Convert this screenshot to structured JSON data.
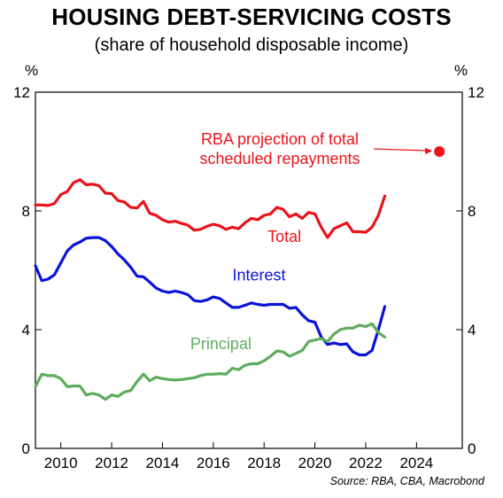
{
  "title": "HOUSING DEBT-SERVICING COSTS",
  "subtitle": "(share of household disposable income)",
  "source": "Source: RBA, CBA, Macrobond",
  "chart_data": {
    "type": "line",
    "title": "HOUSING DEBT-SERVICING COSTS",
    "subtitle": "(share of household disposable income)",
    "y_unit_left": "%",
    "y_unit_right": "%",
    "xlim": [
      2009.0,
      2025.8
    ],
    "ylim": [
      0,
      12
    ],
    "x_ticks": [
      2010,
      2012,
      2014,
      2016,
      2018,
      2020,
      2022,
      2024
    ],
    "y_ticks": [
      0,
      4,
      8,
      12
    ],
    "grid": false,
    "legend": "inline labels",
    "series": [
      {
        "name": "Total",
        "color": "#e8141b",
        "x": [
          2009.0,
          2009.25,
          2009.5,
          2009.75,
          2010.0,
          2010.25,
          2010.5,
          2010.75,
          2011.0,
          2011.25,
          2011.5,
          2011.75,
          2012.0,
          2012.25,
          2012.5,
          2012.75,
          2013.0,
          2013.25,
          2013.5,
          2013.75,
          2014.0,
          2014.25,
          2014.5,
          2014.75,
          2015.0,
          2015.25,
          2015.5,
          2015.75,
          2016.0,
          2016.25,
          2016.5,
          2016.75,
          2017.0,
          2017.25,
          2017.5,
          2017.75,
          2018.0,
          2018.25,
          2018.5,
          2018.75,
          2019.0,
          2019.25,
          2019.5,
          2019.75,
          2020.0,
          2020.25,
          2020.5,
          2020.75,
          2021.0,
          2021.25,
          2021.5,
          2021.75,
          2022.0,
          2022.25,
          2022.5,
          2022.75
        ],
        "values": [
          8.2,
          8.2,
          8.18,
          8.25,
          8.55,
          8.65,
          8.95,
          9.05,
          8.88,
          8.9,
          8.85,
          8.6,
          8.58,
          8.35,
          8.3,
          8.12,
          8.1,
          8.32,
          7.92,
          7.85,
          7.7,
          7.62,
          7.65,
          7.58,
          7.52,
          7.35,
          7.38,
          7.48,
          7.55,
          7.5,
          7.38,
          7.45,
          7.4,
          7.6,
          7.75,
          7.7,
          7.85,
          7.9,
          8.12,
          8.05,
          7.8,
          7.9,
          7.75,
          7.95,
          7.9,
          7.45,
          7.1,
          7.4,
          7.5,
          7.6,
          7.3,
          7.3,
          7.28,
          7.45,
          7.85,
          8.5
        ]
      },
      {
        "name": "Interest",
        "color": "#0a14d8",
        "x": [
          2009.0,
          2009.25,
          2009.5,
          2009.75,
          2010.0,
          2010.25,
          2010.5,
          2010.75,
          2011.0,
          2011.25,
          2011.5,
          2011.75,
          2012.0,
          2012.25,
          2012.5,
          2012.75,
          2013.0,
          2013.25,
          2013.5,
          2013.75,
          2014.0,
          2014.25,
          2014.5,
          2014.75,
          2015.0,
          2015.25,
          2015.5,
          2015.75,
          2016.0,
          2016.25,
          2016.5,
          2016.75,
          2017.0,
          2017.25,
          2017.5,
          2017.75,
          2018.0,
          2018.25,
          2018.5,
          2018.75,
          2019.0,
          2019.25,
          2019.5,
          2019.75,
          2020.0,
          2020.25,
          2020.5,
          2020.75,
          2021.0,
          2021.25,
          2021.5,
          2021.75,
          2022.0,
          2022.25,
          2022.5,
          2022.75
        ],
        "values": [
          6.15,
          5.65,
          5.7,
          5.85,
          6.25,
          6.65,
          6.85,
          6.95,
          7.08,
          7.1,
          7.1,
          7.0,
          6.8,
          6.55,
          6.35,
          6.1,
          5.8,
          5.78,
          5.6,
          5.4,
          5.3,
          5.25,
          5.3,
          5.25,
          5.18,
          4.98,
          4.95,
          5.0,
          5.1,
          5.05,
          4.9,
          4.75,
          4.75,
          4.82,
          4.9,
          4.85,
          4.82,
          4.85,
          4.85,
          4.85,
          4.72,
          4.75,
          4.5,
          4.3,
          4.25,
          3.75,
          3.5,
          3.55,
          3.5,
          3.52,
          3.25,
          3.15,
          3.15,
          3.3,
          4.0,
          4.78
        ]
      },
      {
        "name": "Principal",
        "color": "#5fac5f",
        "x": [
          2009.0,
          2009.25,
          2009.5,
          2009.75,
          2010.0,
          2010.25,
          2010.5,
          2010.75,
          2011.0,
          2011.25,
          2011.5,
          2011.75,
          2012.0,
          2012.25,
          2012.5,
          2012.75,
          2013.0,
          2013.25,
          2013.5,
          2013.75,
          2014.0,
          2014.25,
          2014.5,
          2014.75,
          2015.0,
          2015.25,
          2015.5,
          2015.75,
          2016.0,
          2016.25,
          2016.5,
          2016.75,
          2017.0,
          2017.25,
          2017.5,
          2017.75,
          2018.0,
          2018.25,
          2018.5,
          2018.75,
          2019.0,
          2019.25,
          2019.5,
          2019.75,
          2020.0,
          2020.25,
          2020.5,
          2020.75,
          2021.0,
          2021.25,
          2021.5,
          2021.75,
          2022.0,
          2022.25,
          2022.5,
          2022.75
        ],
        "values": [
          2.08,
          2.5,
          2.45,
          2.45,
          2.35,
          2.08,
          2.1,
          2.1,
          1.8,
          1.85,
          1.8,
          1.65,
          1.8,
          1.75,
          1.9,
          1.95,
          2.25,
          2.5,
          2.28,
          2.4,
          2.35,
          2.32,
          2.3,
          2.32,
          2.35,
          2.38,
          2.45,
          2.5,
          2.5,
          2.52,
          2.5,
          2.7,
          2.65,
          2.8,
          2.85,
          2.85,
          2.95,
          3.1,
          3.28,
          3.25,
          3.1,
          3.2,
          3.3,
          3.6,
          3.65,
          3.7,
          3.6,
          3.85,
          4.0,
          4.05,
          4.05,
          4.15,
          4.1,
          4.2,
          3.9,
          3.75
        ]
      }
    ],
    "annotations": [
      {
        "text_lines": [
          "RBA projection of total",
          "scheduled repayments"
        ],
        "color": "#e8141b",
        "point": {
          "x": 2024.9,
          "y": 10.0
        }
      }
    ]
  }
}
